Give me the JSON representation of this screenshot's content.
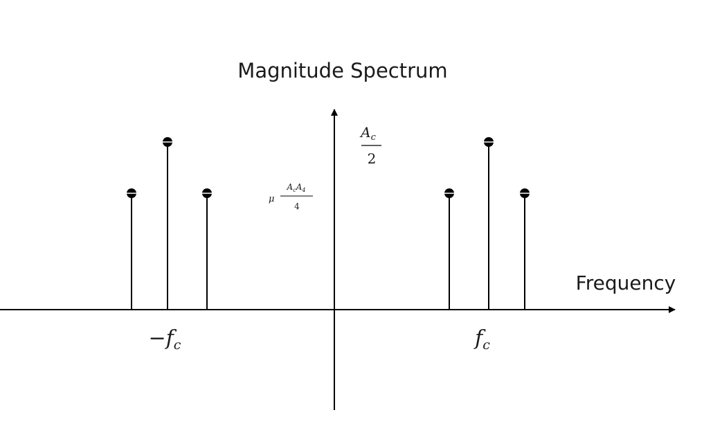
{
  "diagram": {
    "title": "Magnitude Spectrum",
    "x_axis_label": "Frequency",
    "carrier_neg": {
      "sign": "−",
      "symbol": "f",
      "subscript": "c"
    },
    "carrier_pos": {
      "symbol": "f",
      "subscript": "c"
    },
    "carrier_level": {
      "numerator": "A",
      "numerator_sub": "c",
      "denominator": "2"
    },
    "sideband_level": {
      "prefix": "μ",
      "numerator_1": "A",
      "numerator_1_sub": "c",
      "numerator_2": "A",
      "numerator_2_sub": "4",
      "denominator": "4"
    }
  }
}
